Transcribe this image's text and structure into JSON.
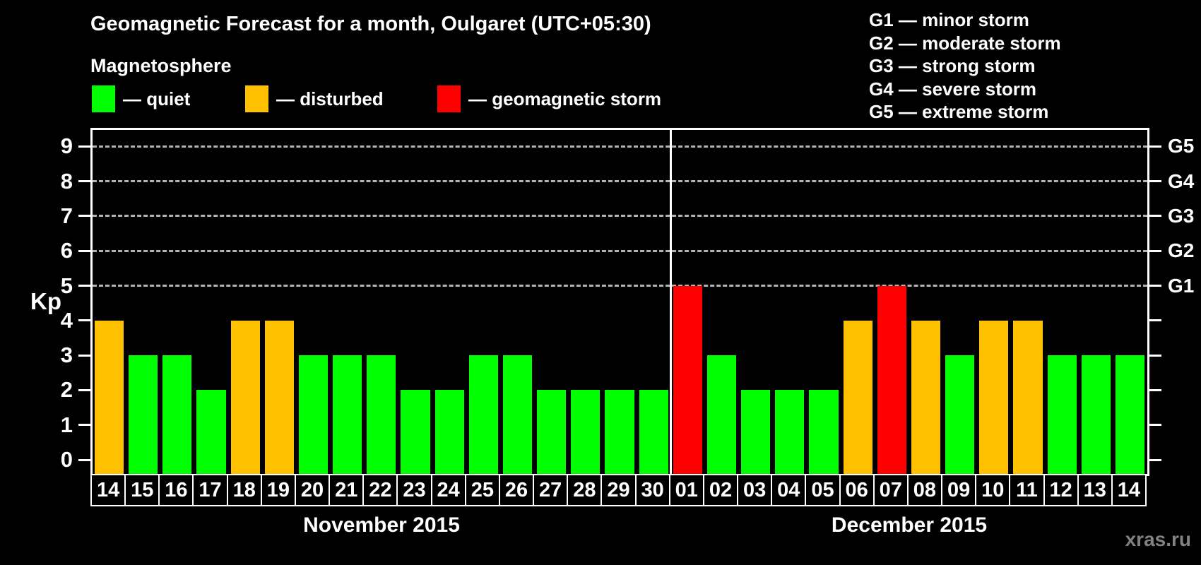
{
  "header": {
    "title": "Geomagnetic Forecast for a month, Oulgaret (UTC+05:30)",
    "subtitle": "Magnetosphere"
  },
  "legend": {
    "items": [
      {
        "key": "quiet",
        "label": "— quiet",
        "color": "#00ff00"
      },
      {
        "key": "disturbed",
        "label": "— disturbed",
        "color": "#ffc000"
      },
      {
        "key": "storm",
        "label": "— geomagnetic storm",
        "color": "#ff0000"
      }
    ]
  },
  "storm_scale": {
    "items": [
      "G1 — minor storm",
      "G2 — moderate storm",
      "G3 — strong storm",
      "G4 — severe storm",
      "G5 — extreme storm"
    ]
  },
  "watermark": "xras.ru",
  "chart_data": {
    "type": "bar",
    "title": "Geomagnetic Forecast for a month, Oulgaret (UTC+05:30)",
    "subtitle": "Magnetosphere",
    "ylabel": "Kp",
    "ylim": [
      0,
      9
    ],
    "yticks": [
      0,
      1,
      2,
      3,
      4,
      5,
      6,
      7,
      8,
      9
    ],
    "grid": "horizontal dashed lines at Kp 5-9 only",
    "legend_position": "top-left",
    "gridlines_at_kp": [
      5,
      6,
      7,
      8,
      9
    ],
    "right_axis": [
      {
        "kp": 5,
        "label": "G1"
      },
      {
        "kp": 6,
        "label": "G2"
      },
      {
        "kp": 7,
        "label": "G3"
      },
      {
        "kp": 8,
        "label": "G4"
      },
      {
        "kp": 9,
        "label": "G5"
      }
    ],
    "status_colors": {
      "quiet": "#00ff00",
      "disturbed": "#ffc000",
      "storm": "#ff0000"
    },
    "months": [
      {
        "label": "November 2015",
        "days": [
          {
            "day": "14",
            "kp": 4,
            "status": "disturbed"
          },
          {
            "day": "15",
            "kp": 3,
            "status": "quiet"
          },
          {
            "day": "16",
            "kp": 3,
            "status": "quiet"
          },
          {
            "day": "17",
            "kp": 2,
            "status": "quiet"
          },
          {
            "day": "18",
            "kp": 4,
            "status": "disturbed"
          },
          {
            "day": "19",
            "kp": 4,
            "status": "disturbed"
          },
          {
            "day": "20",
            "kp": 3,
            "status": "quiet"
          },
          {
            "day": "21",
            "kp": 3,
            "status": "quiet"
          },
          {
            "day": "22",
            "kp": 3,
            "status": "quiet"
          },
          {
            "day": "23",
            "kp": 2,
            "status": "quiet"
          },
          {
            "day": "24",
            "kp": 2,
            "status": "quiet"
          },
          {
            "day": "25",
            "kp": 3,
            "status": "quiet"
          },
          {
            "day": "26",
            "kp": 3,
            "status": "quiet"
          },
          {
            "day": "27",
            "kp": 2,
            "status": "quiet"
          },
          {
            "day": "28",
            "kp": 2,
            "status": "quiet"
          },
          {
            "day": "29",
            "kp": 2,
            "status": "quiet"
          },
          {
            "day": "30",
            "kp": 2,
            "status": "quiet"
          }
        ]
      },
      {
        "label": "December 2015",
        "days": [
          {
            "day": "01",
            "kp": 5,
            "status": "storm"
          },
          {
            "day": "02",
            "kp": 3,
            "status": "quiet"
          },
          {
            "day": "03",
            "kp": 2,
            "status": "quiet"
          },
          {
            "day": "04",
            "kp": 2,
            "status": "quiet"
          },
          {
            "day": "05",
            "kp": 2,
            "status": "quiet"
          },
          {
            "day": "06",
            "kp": 4,
            "status": "disturbed"
          },
          {
            "day": "07",
            "kp": 5,
            "status": "storm"
          },
          {
            "day": "08",
            "kp": 4,
            "status": "disturbed"
          },
          {
            "day": "09",
            "kp": 3,
            "status": "quiet"
          },
          {
            "day": "10",
            "kp": 4,
            "status": "disturbed"
          },
          {
            "day": "11",
            "kp": 4,
            "status": "disturbed"
          },
          {
            "day": "12",
            "kp": 3,
            "status": "quiet"
          },
          {
            "day": "13",
            "kp": 3,
            "status": "quiet"
          },
          {
            "day": "14",
            "kp": 3,
            "status": "quiet"
          }
        ]
      }
    ]
  }
}
